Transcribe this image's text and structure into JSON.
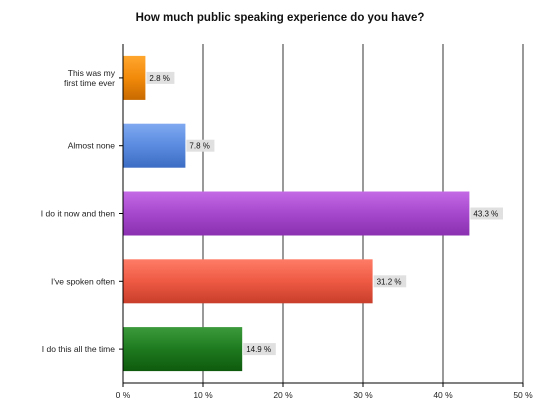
{
  "chart_data": {
    "type": "bar",
    "orientation": "horizontal",
    "title": "How much public speaking experience do you have?",
    "xlabel": "",
    "ylabel": "",
    "categories": [
      [
        "This was my",
        "first time ever"
      ],
      [
        "Almost none"
      ],
      [
        "I do it now and then"
      ],
      [
        "I've spoken often"
      ],
      [
        "I do this all the time"
      ]
    ],
    "values": [
      2.8,
      7.8,
      43.3,
      31.2,
      14.9
    ],
    "value_labels": [
      "2.8 %",
      "7.8 %",
      "43.3 %",
      "31.2 %",
      "14.9 %"
    ],
    "xlim": [
      0,
      50
    ],
    "xticks": [
      0,
      10,
      20,
      30,
      40,
      50
    ],
    "xtick_labels": [
      "0 %",
      "10 %",
      "20 %",
      "30 %",
      "40 %",
      "50 %"
    ],
    "grid": "vertical",
    "legend": "none",
    "colors": [
      {
        "top": "#FFA62E",
        "base": "#F28A0A",
        "bottom": "#C86A00"
      },
      {
        "top": "#7FA8F0",
        "base": "#5A8BE0",
        "bottom": "#3C6DC4"
      },
      {
        "top": "#C46AE6",
        "base": "#A648CC",
        "bottom": "#8A30B0"
      },
      {
        "top": "#FF7C66",
        "base": "#EE5A44",
        "bottom": "#C83E2A"
      },
      {
        "top": "#3C9A3C",
        "base": "#1E7A1E",
        "bottom": "#0E5A0E"
      }
    ],
    "value_label_background": "#E0E0E0"
  }
}
